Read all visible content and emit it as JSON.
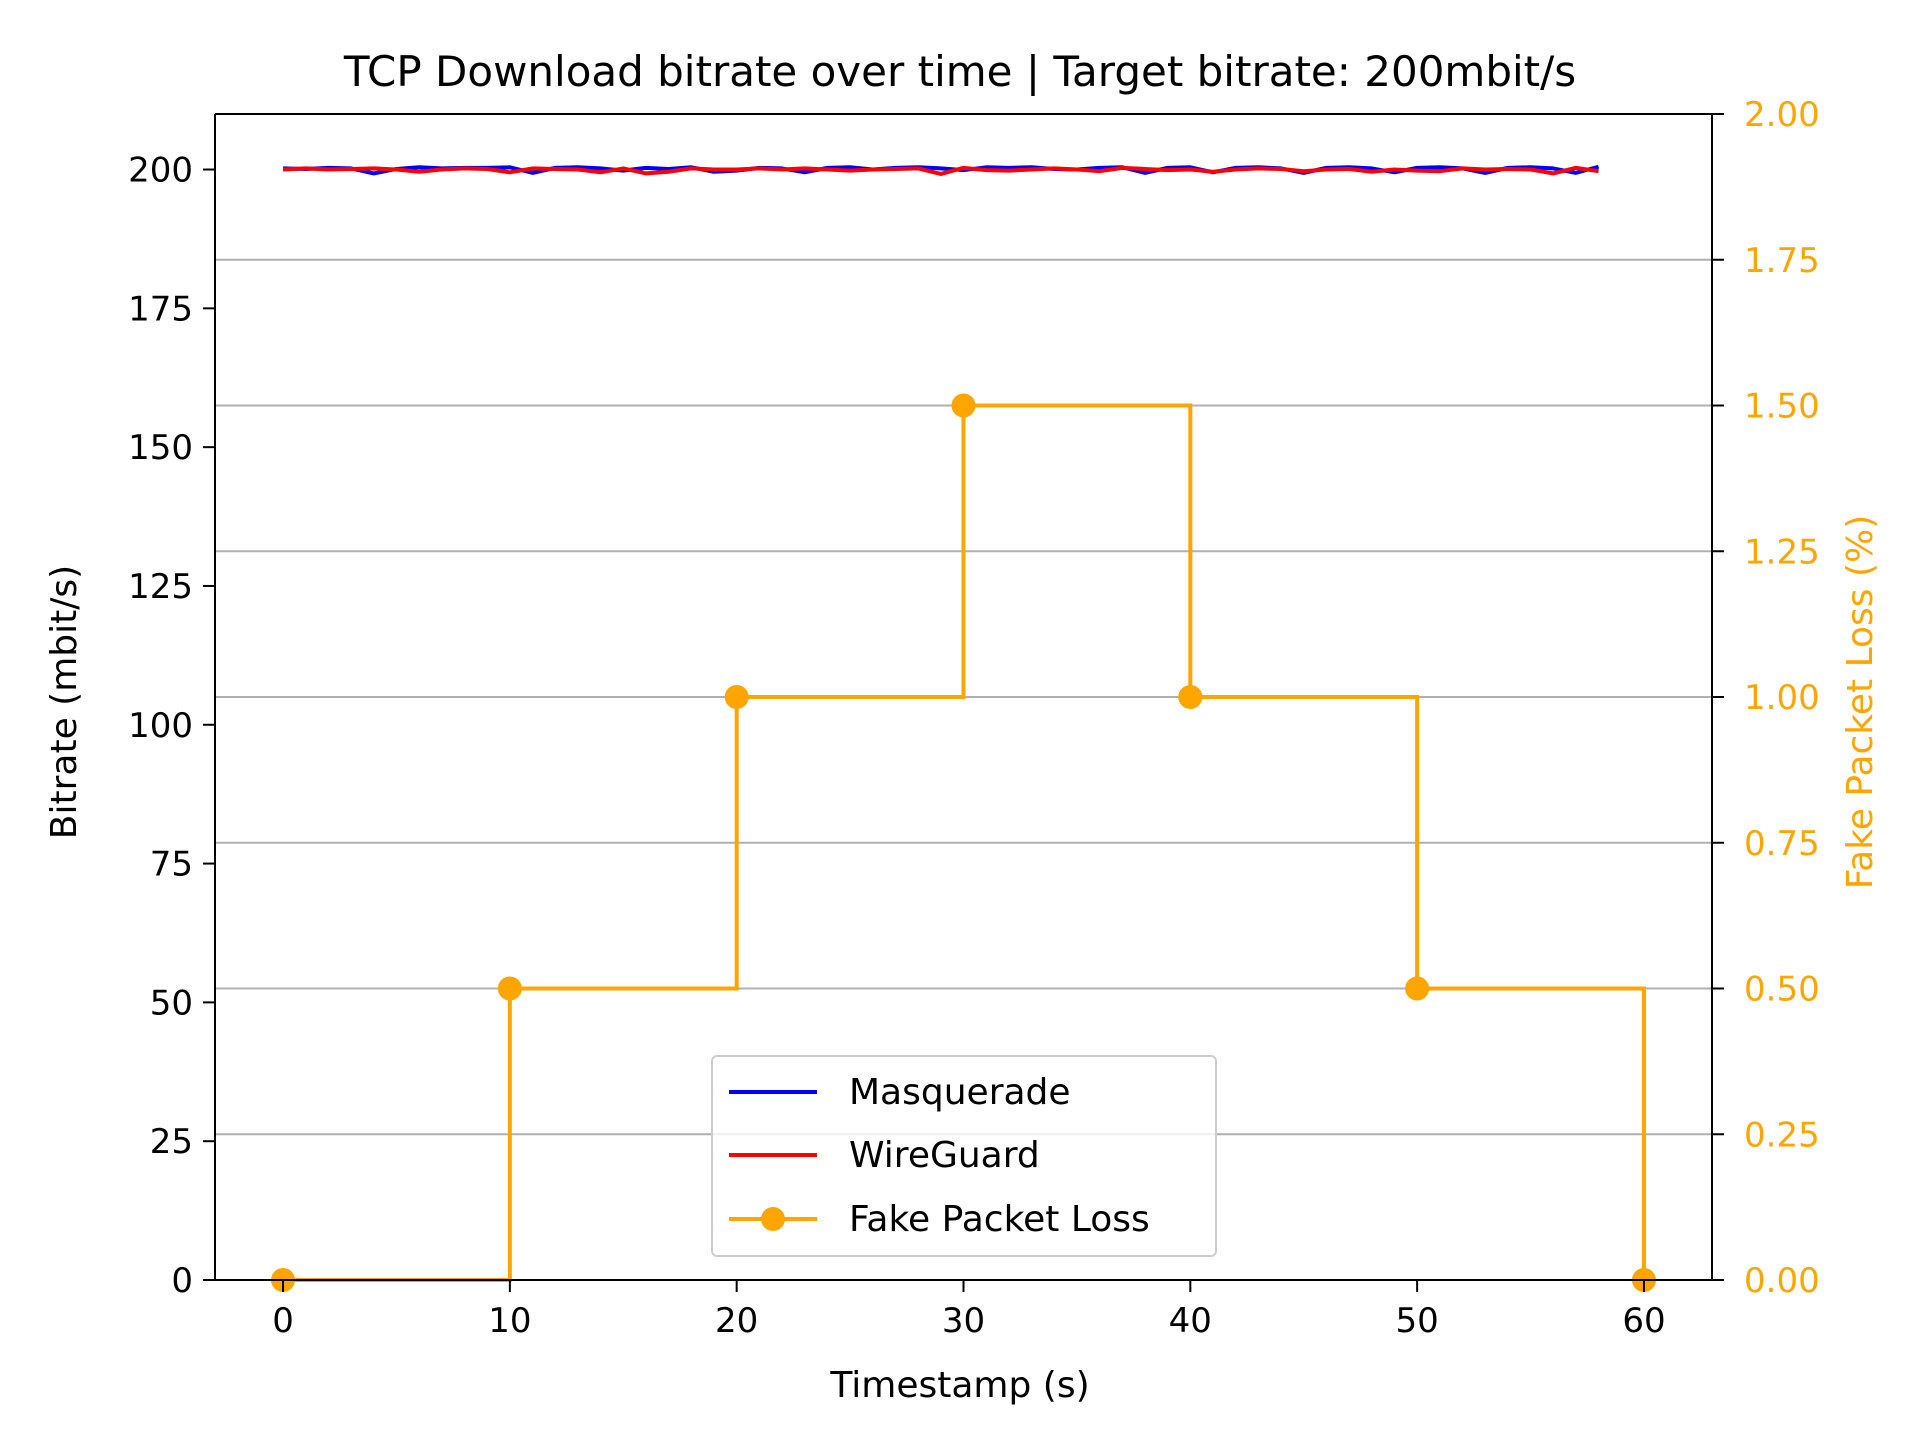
{
  "chart_data": {
    "type": "line",
    "title": "TCP Download bitrate over time | Target bitrate: 200mbit/s",
    "xlabel": "Timestamp (s)",
    "ylabel": "Bitrate (mbit/s)",
    "y2label": "Fake Packet Loss (%)",
    "xlim": [
      -3,
      63
    ],
    "ylim": [
      0,
      210
    ],
    "y2lim": [
      0,
      2
    ],
    "xticks": [
      0,
      10,
      20,
      30,
      40,
      50,
      60
    ],
    "yticks": [
      0,
      25,
      50,
      75,
      100,
      125,
      150,
      175,
      200
    ],
    "y2ticks": [
      "0.00",
      "0.25",
      "0.50",
      "0.75",
      "1.00",
      "1.25",
      "1.50",
      "1.75",
      "2.00"
    ],
    "grid": "horizontal lines at right-axis ticks",
    "legend_position": "lower center",
    "colors": {
      "masquerade": "#0000ff",
      "wireguard": "#ff0000",
      "loss": "#ffa500",
      "grid": "#b0b0b0",
      "axis": "#000000"
    },
    "series": [
      {
        "name": "Masquerade",
        "axis": "left",
        "x": [
          0,
          1,
          2,
          3,
          4,
          5,
          6,
          7,
          8,
          9,
          10,
          11,
          12,
          13,
          14,
          15,
          16,
          17,
          18,
          19,
          20,
          21,
          22,
          23,
          24,
          25,
          26,
          27,
          28,
          29,
          30,
          31,
          32,
          33,
          34,
          35,
          36,
          37,
          38,
          39,
          40,
          41,
          42,
          43,
          44,
          45,
          46,
          47,
          48,
          49,
          50,
          51,
          52,
          53,
          54,
          55,
          56,
          57,
          58
        ],
        "values": [
          200.2,
          200.1,
          200.3,
          200.2,
          199.3,
          200.1,
          200.4,
          200.2,
          200.3,
          200.3,
          200.4,
          199.4,
          200.3,
          200.4,
          200.2,
          199.8,
          200.3,
          200.1,
          200.4,
          199.6,
          199.8,
          200.3,
          200.2,
          199.5,
          200.3,
          200.4,
          200.0,
          200.3,
          200.4,
          200.2,
          199.9,
          200.4,
          200.3,
          200.4,
          200.1,
          200.0,
          200.3,
          200.4,
          199.4,
          200.3,
          200.4,
          199.5,
          200.3,
          200.4,
          200.2,
          199.4,
          200.3,
          200.4,
          200.2,
          199.5,
          200.3,
          200.4,
          200.2,
          199.4,
          200.3,
          200.4,
          200.2,
          199.4,
          200.5
        ]
      },
      {
        "name": "WireGuard",
        "axis": "left",
        "x": [
          0,
          1,
          2,
          3,
          4,
          5,
          6,
          7,
          8,
          9,
          10,
          11,
          12,
          13,
          14,
          15,
          16,
          17,
          18,
          19,
          20,
          21,
          22,
          23,
          24,
          25,
          26,
          27,
          28,
          29,
          30,
          31,
          32,
          33,
          34,
          35,
          36,
          37,
          38,
          39,
          40,
          41,
          42,
          43,
          44,
          45,
          46,
          47,
          48,
          49,
          50,
          51,
          52,
          53,
          54,
          55,
          56,
          57,
          58
        ],
        "values": [
          200.0,
          200.2,
          200.0,
          200.1,
          200.2,
          200.0,
          199.6,
          200.0,
          200.2,
          200.1,
          199.5,
          200.2,
          200.1,
          200.0,
          199.5,
          200.2,
          199.3,
          199.6,
          200.2,
          200.0,
          200.0,
          200.2,
          200.0,
          200.2,
          200.0,
          199.8,
          200.0,
          200.1,
          200.2,
          199.2,
          200.3,
          199.9,
          199.8,
          200.0,
          200.2,
          200.0,
          199.7,
          200.3,
          200.1,
          199.9,
          200.0,
          199.6,
          200.0,
          200.2,
          200.1,
          199.7,
          200.0,
          200.1,
          199.6,
          200.0,
          199.8,
          199.7,
          200.2,
          200.0,
          200.1,
          200.0,
          199.3,
          200.3,
          199.7
        ]
      },
      {
        "name": "Fake Packet Loss",
        "axis": "right",
        "step": "post",
        "x": [
          0,
          10,
          20,
          30,
          40,
          50,
          60
        ],
        "values": [
          0.0,
          0.5,
          1.0,
          1.5,
          1.0,
          0.5,
          0.0
        ]
      }
    ]
  }
}
